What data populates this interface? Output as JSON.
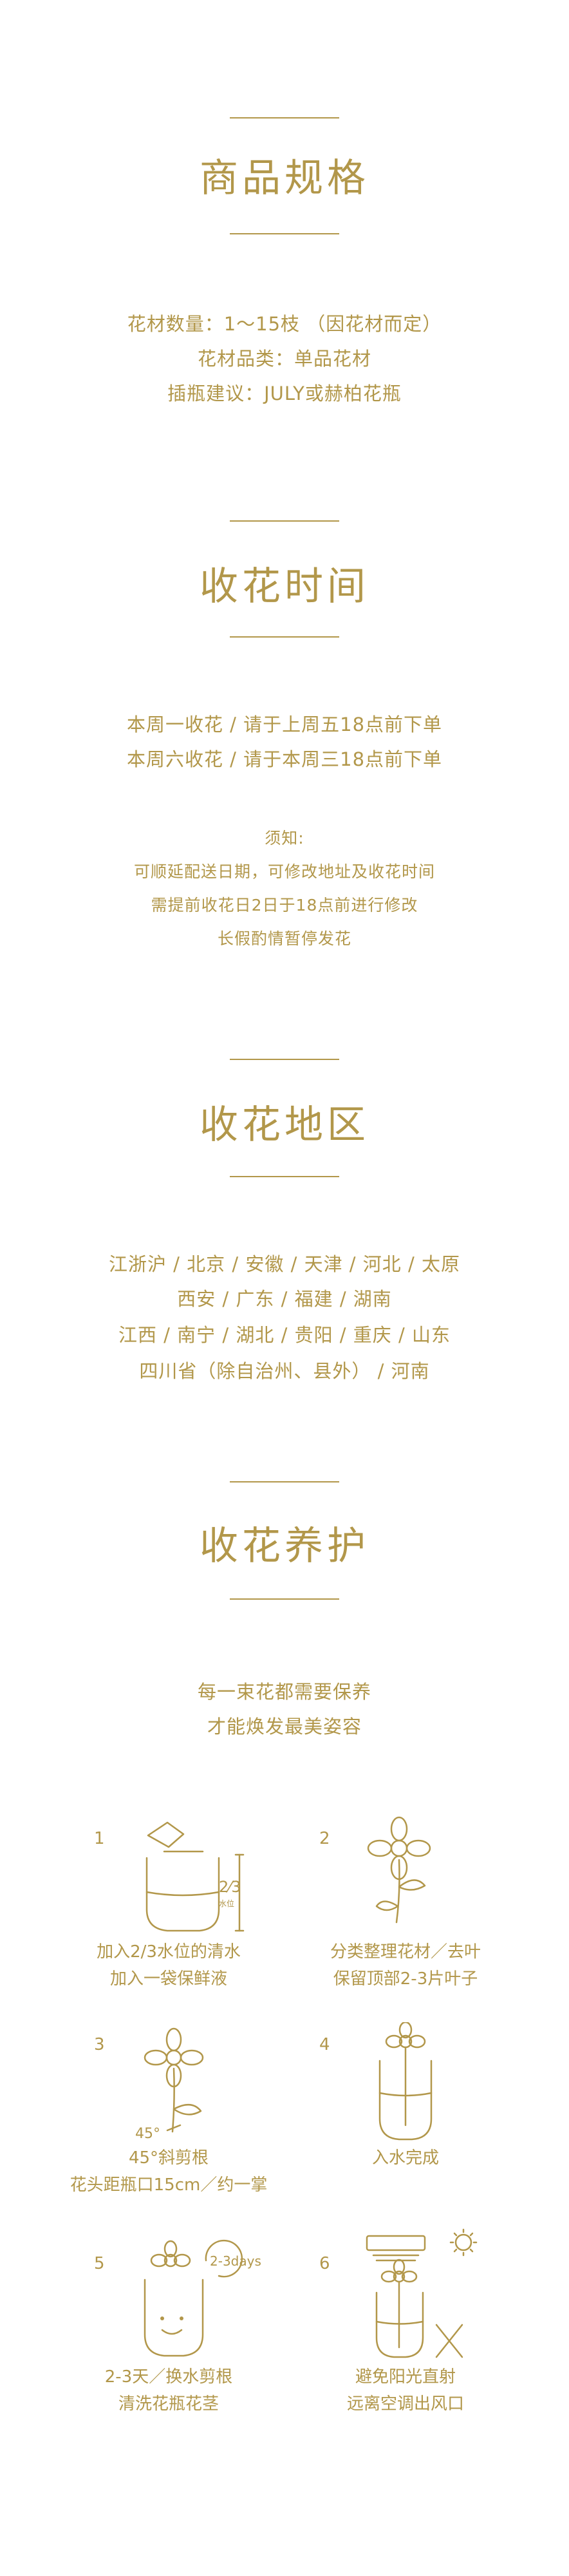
{
  "colors": {
    "accent": "#b2974a",
    "background": "#ffffff"
  },
  "spec": {
    "title": "商品规格",
    "lines": [
      "花材数量：1～15枝 （因花材而定）",
      "花材品类：单品花材",
      "插瓶建议：JULY或赫柏花瓶"
    ]
  },
  "receive_time": {
    "title": "收花时间",
    "lines": [
      "本周一收花 / 请于上周五18点前下单",
      "本周六收花 / 请于本周三18点前下单"
    ],
    "notes": [
      "须知:",
      "可顺延配送日期，可修改地址及收花时间",
      "需提前收花日2日于18点前进行修改",
      "长假酌情暂停发花"
    ]
  },
  "receive_area": {
    "title": "收花地区",
    "lines": [
      "江浙沪 / 北京 / 安徽 / 天津 / 河北 / 太原",
      "西安 / 广东 / 福建 / 湖南",
      "江西 / 南宁 / 湖北 / 贵阳 / 重庆 / 山东",
      "四川省（除自治州、县外） / 河南"
    ]
  },
  "care": {
    "title": "收花养护",
    "intro": [
      "每一束花都需要保养",
      "才能焕发最美姿容"
    ],
    "steps": [
      {
        "num": "1",
        "caption": [
          "加入2/3水位的清水",
          "加入一袋保鲜液"
        ],
        "icon": "vase-water-icon",
        "label_2_3": "2⁄3",
        "label_water": "水位"
      },
      {
        "num": "2",
        "caption": [
          "分类整理花材／去叶",
          "保留顶部2-3片叶子"
        ],
        "icon": "flower-leaves-icon"
      },
      {
        "num": "3",
        "caption": [
          "45°斜剪根",
          "花头距瓶口15cm／约一掌"
        ],
        "icon": "flower-cut-icon",
        "label_angle": "45°"
      },
      {
        "num": "4",
        "caption": [
          "入水完成"
        ],
        "icon": "flower-in-vase-icon"
      },
      {
        "num": "5",
        "caption": [
          "2-3天／换水剪根",
          "清洗花瓶花茎"
        ],
        "icon": "vase-refresh-icon",
        "label_days": "2-3days"
      },
      {
        "num": "6",
        "caption": [
          "避免阳光直射",
          "远离空调出风口"
        ],
        "icon": "avoid-sun-ac-icon"
      }
    ]
  }
}
